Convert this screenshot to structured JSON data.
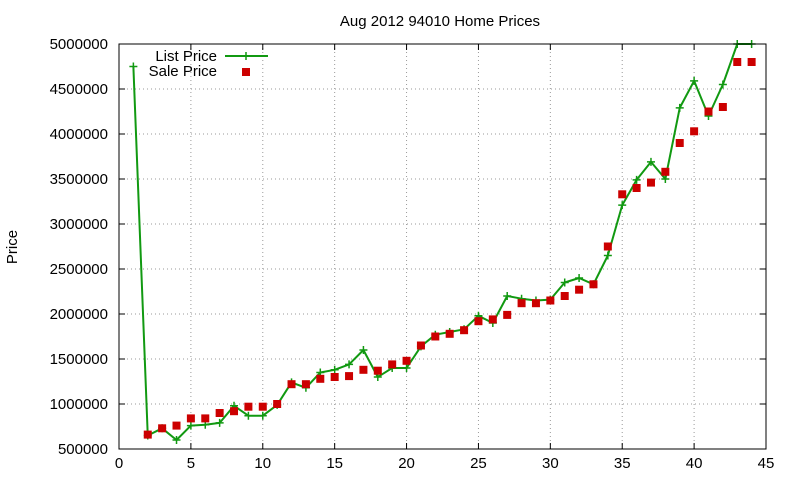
{
  "chart_data": {
    "type": "line",
    "title": "Aug 2012 94010 Home Prices",
    "xlabel": "",
    "ylabel": "Price",
    "xlim": [
      0,
      45
    ],
    "ylim": [
      500000,
      5000000
    ],
    "x_ticks": [
      0,
      5,
      10,
      15,
      20,
      25,
      30,
      35,
      40,
      45
    ],
    "y_ticks": [
      500000,
      1000000,
      1500000,
      2000000,
      2500000,
      3000000,
      3500000,
      4000000,
      4500000,
      5000000
    ],
    "grid": true,
    "legend_position": "top-left",
    "series": [
      {
        "name": "List Price",
        "style": "line+cross",
        "color": "#119911",
        "x": [
          1,
          2,
          3,
          4,
          5,
          6,
          7,
          8,
          9,
          10,
          11,
          12,
          13,
          14,
          15,
          16,
          17,
          18,
          19,
          20,
          21,
          22,
          23,
          24,
          25,
          26,
          27,
          28,
          29,
          30,
          31,
          32,
          33,
          34,
          35,
          36,
          37,
          38,
          39,
          40,
          41,
          42,
          43,
          44
        ],
        "y": [
          4750000,
          650000,
          730000,
          600000,
          760000,
          770000,
          790000,
          980000,
          870000,
          870000,
          990000,
          1240000,
          1180000,
          1350000,
          1380000,
          1440000,
          1600000,
          1300000,
          1400000,
          1400000,
          1640000,
          1770000,
          1800000,
          1830000,
          1980000,
          1900000,
          2200000,
          2170000,
          2150000,
          2160000,
          2350000,
          2400000,
          2330000,
          2650000,
          3210000,
          3490000,
          3690000,
          3500000,
          4290000,
          4590000,
          4200000,
          4550000,
          5000000,
          5000000
        ]
      },
      {
        "name": "Sale Price",
        "style": "square",
        "color": "#cc0000",
        "x": [
          2,
          3,
          4,
          5,
          6,
          7,
          8,
          9,
          10,
          11,
          12,
          13,
          14,
          15,
          16,
          17,
          18,
          19,
          20,
          21,
          22,
          23,
          24,
          25,
          26,
          27,
          28,
          29,
          30,
          31,
          32,
          33,
          34,
          35,
          36,
          37,
          38,
          39,
          40,
          41,
          42,
          43,
          44
        ],
        "y": [
          660000,
          730000,
          760000,
          840000,
          840000,
          900000,
          920000,
          970000,
          970000,
          1000000,
          1220000,
          1220000,
          1280000,
          1300000,
          1310000,
          1380000,
          1370000,
          1440000,
          1480000,
          1650000,
          1750000,
          1780000,
          1820000,
          1920000,
          1940000,
          1990000,
          2120000,
          2120000,
          2150000,
          2200000,
          2270000,
          2330000,
          2750000,
          3330000,
          3400000,
          3460000,
          3580000,
          3900000,
          4030000,
          4250000,
          4300000,
          4800000,
          4800000
        ]
      }
    ]
  }
}
